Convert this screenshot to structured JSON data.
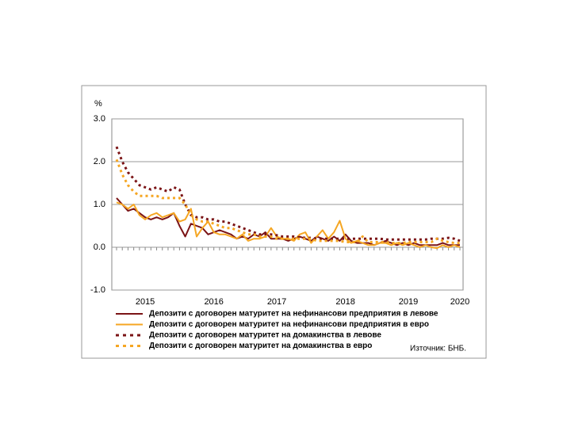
{
  "chart_data": {
    "type": "line",
    "y_unit": "%",
    "source": "Източник: БНБ.",
    "categories": [
      null,
      null,
      null,
      null,
      null,
      "2015",
      null,
      null,
      null,
      null,
      null,
      null,
      null,
      null,
      null,
      null,
      null,
      "2016",
      null,
      null,
      null,
      null,
      null,
      null,
      null,
      null,
      null,
      null,
      "2017",
      null,
      null,
      null,
      null,
      null,
      null,
      null,
      null,
      null,
      null,
      null,
      "2018",
      null,
      null,
      null,
      null,
      null,
      null,
      null,
      null,
      null,
      null,
      "2019",
      null,
      null,
      null,
      null,
      null,
      null,
      null,
      null,
      "2020"
    ],
    "ylim": [
      -1,
      3
    ],
    "yticks": [
      {
        "value": -1,
        "label": "-1.0"
      },
      {
        "value": 0,
        "label": "0.0"
      },
      {
        "value": 1,
        "label": "1.0"
      },
      {
        "value": 2,
        "label": "2.0"
      },
      {
        "value": 3,
        "label": "3.0"
      }
    ],
    "grid": true,
    "legend": "bottom",
    "series": [
      {
        "name": "Депозити с договорен матуритет на нефинансови предприятия в левове",
        "color": "#7b1416",
        "line_style": "solid",
        "values": [
          1.15,
          1.0,
          0.85,
          0.9,
          0.8,
          0.7,
          0.65,
          0.7,
          0.65,
          0.7,
          0.8,
          0.5,
          0.25,
          0.55,
          0.5,
          0.45,
          0.3,
          0.35,
          0.4,
          0.35,
          0.3,
          0.2,
          0.25,
          0.2,
          0.3,
          0.25,
          0.35,
          0.2,
          0.2,
          0.2,
          0.15,
          0.2,
          0.25,
          0.2,
          0.15,
          0.25,
          0.2,
          0.15,
          0.25,
          0.15,
          0.3,
          0.15,
          0.1,
          0.1,
          0.1,
          0.05,
          0.1,
          0.15,
          0.1,
          0.05,
          0.1,
          0.05,
          0.1,
          0.05,
          0.05,
          0.05,
          0.05,
          0.1,
          0.05,
          0.05,
          0.05
        ]
      },
      {
        "name": "Депозити с договорен матуритет на нефинансови предприятия в евро",
        "color": "#f5a623",
        "line_style": "solid",
        "values": [
          1.05,
          1.0,
          0.9,
          1.0,
          0.75,
          0.65,
          0.75,
          0.8,
          0.7,
          0.75,
          0.8,
          0.6,
          0.65,
          0.9,
          0.25,
          0.45,
          0.6,
          0.35,
          0.3,
          0.3,
          0.25,
          0.2,
          0.3,
          0.15,
          0.2,
          0.2,
          0.25,
          0.45,
          0.25,
          0.2,
          0.2,
          0.15,
          0.3,
          0.35,
          0.1,
          0.25,
          0.4,
          0.2,
          0.35,
          0.62,
          0.2,
          0.1,
          0.15,
          0.1,
          0.05,
          0.05,
          0.1,
          0.1,
          0.05,
          0.1,
          0.05,
          0.1,
          0.05,
          0.0,
          0.05,
          0.0,
          -0.02,
          0.05,
          0.0,
          0.05,
          0.0
        ]
      },
      {
        "name": "Депозити с договорен матуритет на домакинства в левове",
        "color": "#7b1416",
        "line_style": "dotted",
        "values": [
          2.35,
          2.0,
          1.75,
          1.6,
          1.45,
          1.4,
          1.35,
          1.4,
          1.35,
          1.3,
          1.4,
          1.35,
          1.0,
          0.75,
          0.7,
          0.7,
          0.65,
          0.65,
          0.6,
          0.6,
          0.55,
          0.5,
          0.45,
          0.4,
          0.35,
          0.3,
          0.3,
          0.3,
          0.28,
          0.25,
          0.25,
          0.25,
          0.23,
          0.22,
          0.22,
          0.2,
          0.2,
          0.2,
          0.2,
          0.2,
          0.2,
          0.2,
          0.2,
          0.2,
          0.2,
          0.2,
          0.2,
          0.18,
          0.18,
          0.18,
          0.18,
          0.18,
          0.18,
          0.18,
          0.18,
          0.2,
          0.2,
          0.2,
          0.22,
          0.2,
          0.15
        ]
      },
      {
        "name": "Депозити с договорен матуритет на домакинства в евро",
        "color": "#f5a623",
        "line_style": "dotted",
        "values": [
          2.05,
          1.7,
          1.45,
          1.3,
          1.2,
          1.2,
          1.2,
          1.2,
          1.15,
          1.15,
          1.15,
          1.15,
          1.0,
          0.75,
          0.65,
          0.6,
          0.6,
          0.55,
          0.5,
          0.45,
          0.45,
          0.4,
          0.35,
          0.3,
          0.3,
          0.25,
          0.25,
          0.25,
          0.2,
          0.2,
          0.2,
          0.2,
          0.2,
          0.2,
          0.2,
          0.15,
          0.15,
          0.15,
          0.15,
          0.15,
          0.12,
          0.12,
          0.12,
          0.25,
          0.12,
          0.12,
          0.12,
          0.12,
          0.1,
          0.1,
          0.1,
          0.12,
          0.12,
          0.12,
          0.12,
          0.12,
          0.2,
          0.15,
          0.12,
          0.1,
          0.1
        ]
      }
    ]
  }
}
